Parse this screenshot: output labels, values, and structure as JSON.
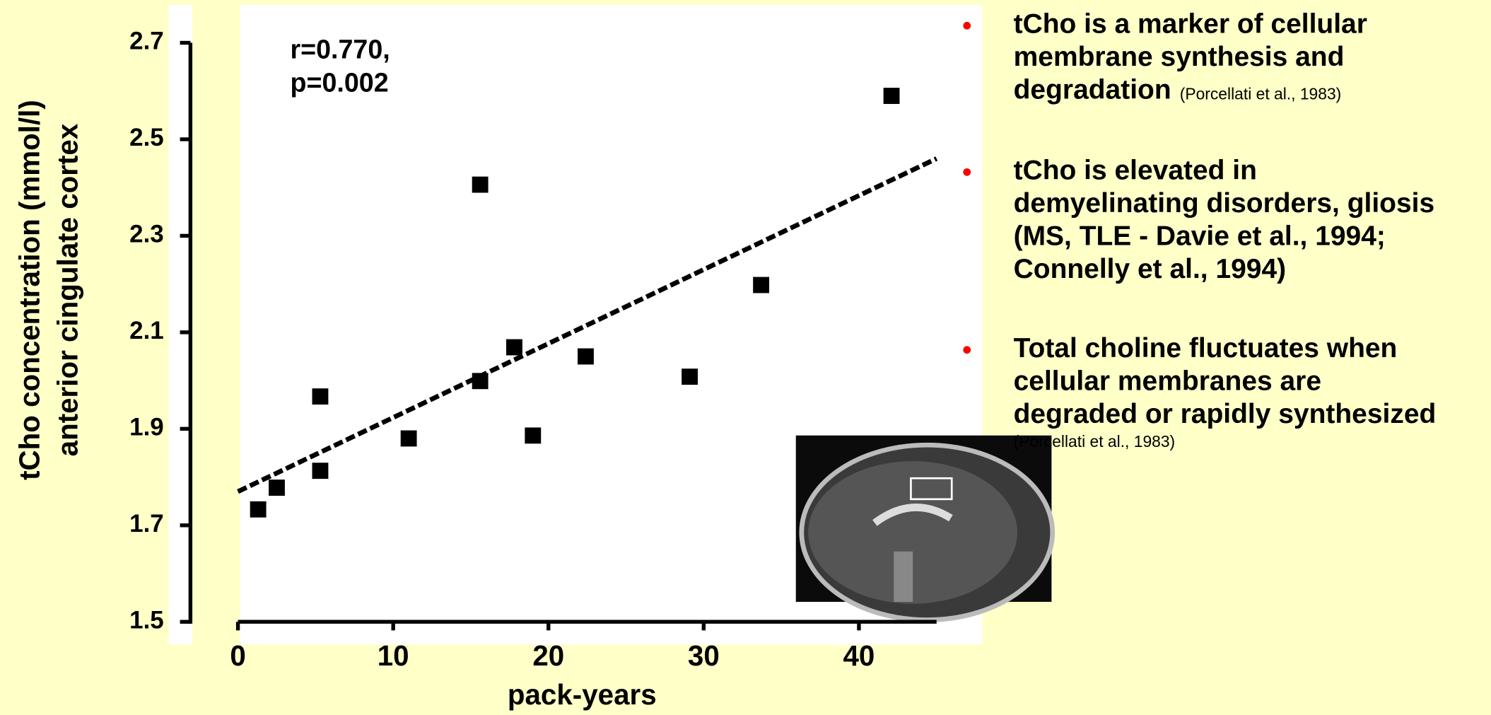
{
  "chart_data": {
    "type": "scatter",
    "annotation": [
      "r=0.770,",
      "p=0.002"
    ],
    "y_label": [
      "tCho concentration (mmol/l)",
      "anterior cingulate cortex"
    ],
    "x_label": "pack-years",
    "x": [
      1.3,
      2.5,
      5.3,
      5.3,
      11.0,
      15.6,
      15.6,
      17.8,
      19.0,
      22.4,
      29.1,
      33.7,
      42.1
    ],
    "values": [
      1.733,
      1.778,
      1.813,
      1.967,
      1.88,
      2.406,
      1.999,
      2.069,
      1.886,
      2.05,
      2.008,
      2.198,
      2.59
    ],
    "color": "#000000",
    "trendline": {
      "x": [
        0,
        45
      ],
      "y": [
        1.77,
        2.46
      ]
    },
    "xlim": [
      0,
      45
    ],
    "xticks": [
      0,
      10,
      20,
      30,
      40
    ],
    "ylim": [
      1.5,
      2.7
    ],
    "yticks": [
      1.5,
      1.7,
      1.9,
      2.1,
      2.3,
      2.5,
      2.7
    ]
  },
  "bullets": [
    {
      "lines": [
        "tCho is a marker of cellular",
        "membrane synthesis and",
        "degradation"
      ],
      "citation": "(Porcellati et al., 1983)"
    },
    {
      "lines": [
        "tCho is elevated in",
        "demyelinating disorders, gliosis",
        "(MS, TLE - Davie et al., 1994;",
        "Connelly et al., 1994)"
      ]
    },
    {
      "lines": [
        "Total choline fluctuates when",
        "cellular membranes are",
        "degraded or rapidly synthesized"
      ],
      "citation": "(Porcellati et al., 1983)"
    }
  ]
}
